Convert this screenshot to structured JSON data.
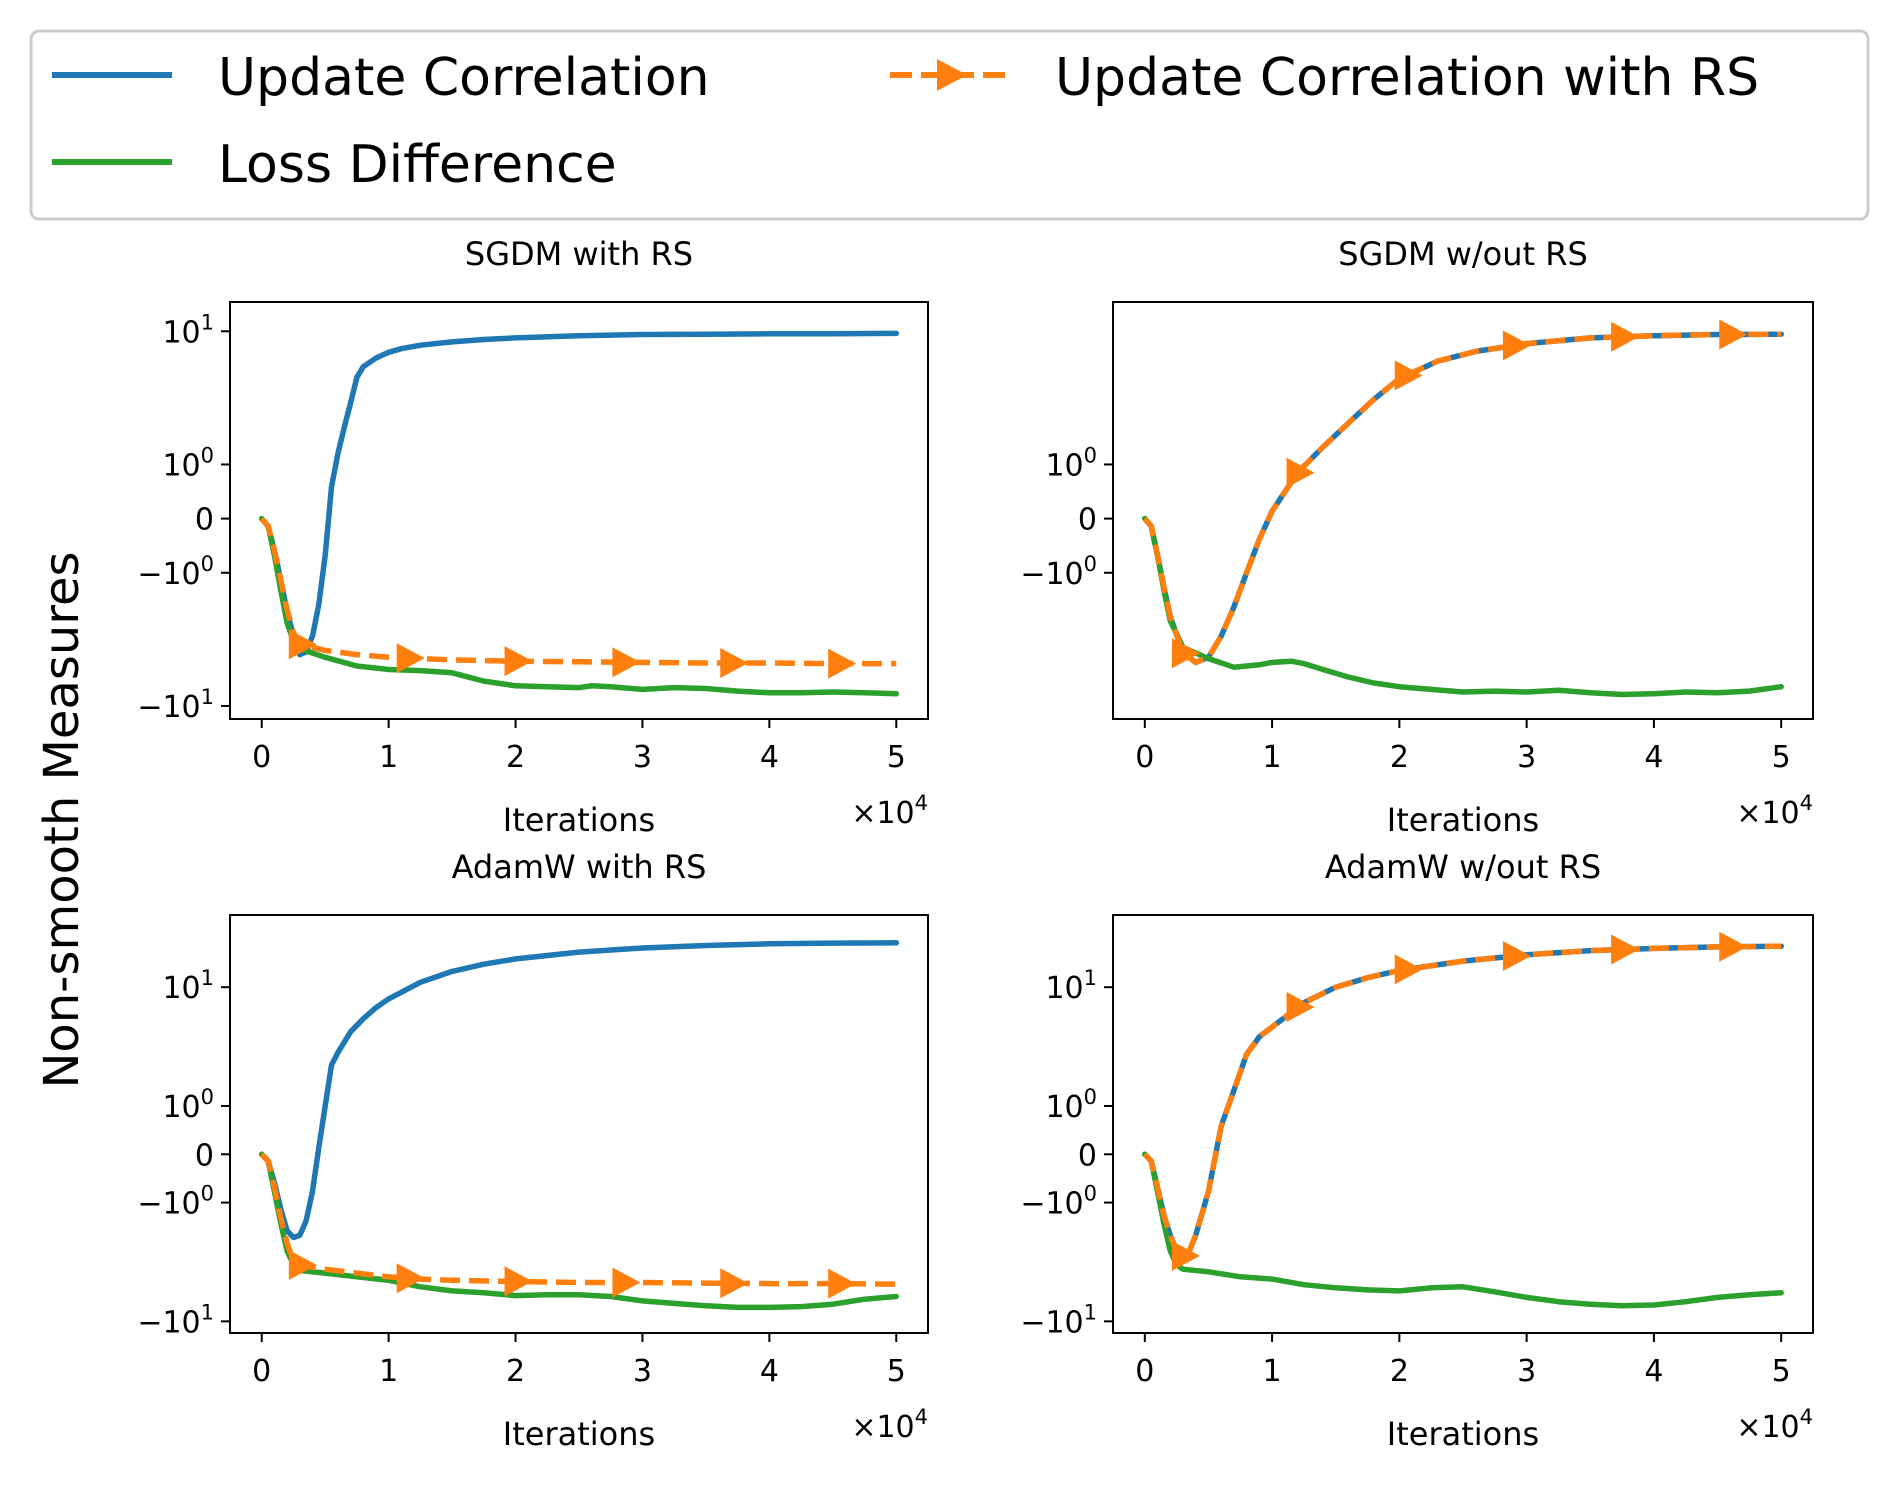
{
  "figure": {
    "ylabel": "Non-smooth Measures"
  },
  "legend": {
    "entries": [
      {
        "label": "Update Correlation",
        "color": "#1f77b4",
        "style": "solid"
      },
      {
        "label": "Update Correlation with RS",
        "color": "#ff7f0e",
        "style": "dashed-triangle"
      },
      {
        "label": "Loss Difference",
        "color": "#2ca02c",
        "style": "solid"
      }
    ]
  },
  "chart_data": [
    {
      "type": "line",
      "title": "SGDM with RS",
      "xlabel": "Iterations",
      "x_multiplier": "×10",
      "x_multiplier_exp": "4",
      "xlim": [
        -0.25,
        5.25
      ],
      "ylim": [
        -12,
        15
      ],
      "x_ticks": [
        0,
        1,
        2,
        3,
        4,
        5
      ],
      "y_ticks": [
        {
          "value": 10,
          "label": "10",
          "sup": "1"
        },
        {
          "value": 1,
          "label": "10",
          "sup": "0"
        },
        {
          "value": 0,
          "label": "0",
          "sup": ""
        },
        {
          "value": -1,
          "label": "−10",
          "sup": "0"
        },
        {
          "value": -10,
          "label": "−10",
          "sup": "1"
        }
      ],
      "series": [
        {
          "name": "Update Correlation",
          "color": "#1f77b4",
          "x": [
            0,
            0.05,
            0.1,
            0.15,
            0.2,
            0.25,
            0.3,
            0.35,
            0.4,
            0.45,
            0.5,
            0.55,
            0.6,
            0.65,
            0.7,
            0.75,
            0.8,
            0.9,
            1.0,
            1.1,
            1.25,
            1.5,
            1.75,
            2.0,
            2.5,
            3.0,
            3.5,
            4.0,
            4.5,
            5.0
          ],
          "y": [
            0,
            -0.1,
            -0.5,
            -1.2,
            -2.3,
            -3.5,
            -4.7,
            -4.5,
            -3.5,
            -2.0,
            -0.6,
            0.5,
            1.3,
            2.2,
            3.4,
            5.1,
            6.0,
            6.8,
            7.4,
            7.8,
            8.2,
            8.6,
            8.9,
            9.1,
            9.4,
            9.55,
            9.6,
            9.65,
            9.67,
            9.7
          ]
        },
        {
          "name": "Update Correlation with RS",
          "color": "#ff7f0e",
          "x": [
            0,
            0.05,
            0.1,
            0.15,
            0.2,
            0.25,
            0.3,
            0.5,
            0.75,
            1.0,
            1.25,
            1.5,
            2.0,
            2.5,
            3.0,
            3.5,
            4.0,
            4.5,
            5.0
          ],
          "y": [
            0,
            -0.1,
            -0.5,
            -1.2,
            -2.2,
            -3.3,
            -4.0,
            -4.4,
            -4.7,
            -4.9,
            -5.0,
            -5.1,
            -5.2,
            -5.25,
            -5.3,
            -5.35,
            -5.35,
            -5.4,
            -5.4
          ],
          "markers_x": [
            0.3,
            1.15,
            2.0,
            2.85,
            3.7,
            4.55
          ]
        },
        {
          "name": "Loss Difference",
          "color": "#2ca02c",
          "x": [
            0,
            0.05,
            0.1,
            0.15,
            0.2,
            0.25,
            0.3,
            0.5,
            0.75,
            1.0,
            1.25,
            1.5,
            1.75,
            2.0,
            2.25,
            2.5,
            2.6,
            2.75,
            3.0,
            3.25,
            3.5,
            3.75,
            4.0,
            4.25,
            4.5,
            4.75,
            5.0
          ],
          "y": [
            0,
            -0.1,
            -0.6,
            -1.5,
            -2.8,
            -3.8,
            -4.3,
            -4.9,
            -5.6,
            -5.9,
            -6.0,
            -6.2,
            -7.0,
            -7.5,
            -7.6,
            -7.7,
            -7.5,
            -7.6,
            -7.9,
            -7.7,
            -7.8,
            -8.1,
            -8.3,
            -8.3,
            -8.2,
            -8.3,
            -8.4
          ]
        }
      ]
    },
    {
      "type": "line",
      "title": "SGDM w/out RS",
      "xlabel": "Iterations",
      "x_multiplier": "×10",
      "x_multiplier_exp": "4",
      "xlim": [
        -0.25,
        5.25
      ],
      "ylim": [
        -12,
        15
      ],
      "x_ticks": [
        0,
        1,
        2,
        3,
        4,
        5
      ],
      "y_ticks": [
        {
          "value": 1,
          "label": "10",
          "sup": "0"
        },
        {
          "value": 0,
          "label": "0",
          "sup": ""
        },
        {
          "value": -1,
          "label": "−10",
          "sup": "0"
        }
      ],
      "series": [
        {
          "name": "Update Correlation",
          "color": "#1f77b4",
          "x": [
            0,
            0.05,
            0.1,
            0.15,
            0.2,
            0.3,
            0.4,
            0.5,
            0.6,
            0.7,
            0.8,
            0.9,
            1.0,
            1.2,
            1.4,
            1.6,
            1.8,
            2.0,
            2.3,
            2.6,
            3.0,
            3.5,
            4.0,
            4.5,
            5.0
          ],
          "y": [
            0,
            -0.1,
            -0.6,
            -1.4,
            -2.5,
            -4.6,
            -5.3,
            -4.9,
            -3.5,
            -2.1,
            -1.0,
            -0.3,
            0.1,
            0.8,
            1.5,
            2.4,
            3.6,
            5.0,
            6.5,
            7.5,
            8.4,
            9.1,
            9.4,
            9.55,
            9.6
          ]
        },
        {
          "name": "Update Correlation with RS",
          "color": "#ff7f0e",
          "x": [
            0,
            0.05,
            0.1,
            0.15,
            0.2,
            0.3,
            0.4,
            0.5,
            0.6,
            0.7,
            0.8,
            0.9,
            1.0,
            1.2,
            1.4,
            1.6,
            1.8,
            2.0,
            2.3,
            2.6,
            3.0,
            3.5,
            4.0,
            4.5,
            5.0
          ],
          "y": [
            0,
            -0.1,
            -0.6,
            -1.4,
            -2.5,
            -4.6,
            -5.3,
            -4.9,
            -3.5,
            -2.1,
            -1.0,
            -0.3,
            0.1,
            0.8,
            1.5,
            2.4,
            3.6,
            5.0,
            6.5,
            7.5,
            8.4,
            9.1,
            9.4,
            9.55,
            9.6
          ],
          "markers_x": [
            0.3,
            1.2,
            2.05,
            2.9,
            3.75,
            4.6
          ]
        },
        {
          "name": "Loss Difference",
          "color": "#2ca02c",
          "x": [
            0,
            0.05,
            0.1,
            0.15,
            0.2,
            0.3,
            0.5,
            0.7,
            0.9,
            1.0,
            1.15,
            1.25,
            1.4,
            1.6,
            1.8,
            2.0,
            2.25,
            2.5,
            2.75,
            3.0,
            3.25,
            3.5,
            3.75,
            4.0,
            4.25,
            4.5,
            4.75,
            5.0
          ],
          "y": [
            0,
            -0.1,
            -0.6,
            -1.5,
            -2.7,
            -4.2,
            -5.0,
            -5.7,
            -5.5,
            -5.3,
            -5.2,
            -5.4,
            -5.9,
            -6.6,
            -7.2,
            -7.6,
            -7.9,
            -8.2,
            -8.1,
            -8.2,
            -8.0,
            -8.3,
            -8.5,
            -8.4,
            -8.2,
            -8.3,
            -8.1,
            -7.6
          ]
        }
      ]
    },
    {
      "type": "line",
      "title": "AdamW with RS",
      "xlabel": "Iterations",
      "x_multiplier": "×10",
      "x_multiplier_exp": "4",
      "xlim": [
        -0.25,
        5.25
      ],
      "ylim": [
        -12,
        30
      ],
      "x_ticks": [
        0,
        1,
        2,
        3,
        4,
        5
      ],
      "y_ticks": [
        {
          "value": 10,
          "label": "10",
          "sup": "1"
        },
        {
          "value": 1,
          "label": "10",
          "sup": "0"
        },
        {
          "value": 0,
          "label": "0",
          "sup": ""
        },
        {
          "value": -1,
          "label": "−10",
          "sup": "0"
        },
        {
          "value": -10,
          "label": "−10",
          "sup": "1"
        }
      ],
      "series": [
        {
          "name": "Update Correlation",
          "color": "#1f77b4",
          "x": [
            0,
            0.05,
            0.1,
            0.15,
            0.2,
            0.25,
            0.3,
            0.35,
            0.4,
            0.45,
            0.5,
            0.55,
            0.6,
            0.7,
            0.8,
            0.9,
            1.0,
            1.25,
            1.5,
            1.75,
            2.0,
            2.5,
            3.0,
            3.5,
            4.0,
            4.5,
            5.0
          ],
          "y": [
            0,
            -0.1,
            -0.5,
            -1.2,
            -2.0,
            -2.3,
            -2.2,
            -1.6,
            -0.7,
            0.1,
            1.0,
            2.6,
            3.3,
            4.8,
            6.0,
            7.2,
            8.3,
            10.8,
            12.8,
            14.3,
            15.5,
            17.2,
            18.3,
            19.0,
            19.5,
            19.7,
            19.8
          ]
        },
        {
          "name": "Update Correlation with RS",
          "color": "#ff7f0e",
          "x": [
            0,
            0.05,
            0.1,
            0.15,
            0.2,
            0.25,
            0.3,
            0.5,
            0.75,
            1.0,
            1.25,
            1.5,
            2.0,
            2.5,
            3.0,
            3.5,
            4.0,
            4.5,
            5.0
          ],
          "y": [
            0,
            -0.1,
            -0.6,
            -1.5,
            -2.6,
            -3.6,
            -3.9,
            -4.2,
            -4.5,
            -4.8,
            -5.0,
            -5.1,
            -5.2,
            -5.3,
            -5.3,
            -5.35,
            -5.4,
            -5.4,
            -5.45
          ],
          "markers_x": [
            0.3,
            1.15,
            2.0,
            2.85,
            3.7,
            4.55
          ]
        },
        {
          "name": "Loss Difference",
          "color": "#2ca02c",
          "x": [
            0,
            0.05,
            0.1,
            0.15,
            0.2,
            0.25,
            0.3,
            0.5,
            0.75,
            1.0,
            1.25,
            1.5,
            1.75,
            2.0,
            2.25,
            2.5,
            2.75,
            3.0,
            3.25,
            3.5,
            3.75,
            4.0,
            4.25,
            4.5,
            4.75,
            5.0
          ],
          "y": [
            0,
            -0.1,
            -0.7,
            -1.7,
            -3.0,
            -3.9,
            -4.3,
            -4.5,
            -4.8,
            -5.1,
            -5.7,
            -6.1,
            -6.3,
            -6.6,
            -6.5,
            -6.5,
            -6.7,
            -7.2,
            -7.5,
            -7.8,
            -8.0,
            -8.0,
            -7.9,
            -7.6,
            -7.0,
            -6.7
          ]
        }
      ]
    },
    {
      "type": "line",
      "title": "AdamW w/out RS",
      "xlabel": "Iterations",
      "x_multiplier": "×10",
      "x_multiplier_exp": "4",
      "xlim": [
        -0.25,
        5.25
      ],
      "ylim": [
        -12,
        30
      ],
      "x_ticks": [
        0,
        1,
        2,
        3,
        4,
        5
      ],
      "y_ticks": [
        {
          "value": 10,
          "label": "10",
          "sup": "1"
        },
        {
          "value": 1,
          "label": "10",
          "sup": "0"
        },
        {
          "value": 0,
          "label": "0",
          "sup": ""
        },
        {
          "value": -1,
          "label": "−10",
          "sup": "0"
        },
        {
          "value": -10,
          "label": "−10",
          "sup": "1"
        }
      ],
      "series": [
        {
          "name": "Update Correlation",
          "color": "#1f77b4",
          "x": [
            0,
            0.05,
            0.1,
            0.15,
            0.2,
            0.25,
            0.3,
            0.35,
            0.4,
            0.5,
            0.6,
            0.7,
            0.8,
            0.9,
            1.0,
            1.25,
            1.5,
            1.75,
            2.0,
            2.5,
            3.0,
            3.5,
            4.0,
            4.5,
            5.0
          ],
          "y": [
            0,
            -0.1,
            -0.6,
            -1.4,
            -2.2,
            -3.0,
            -3.3,
            -3.0,
            -2.2,
            -0.7,
            0.5,
            1.5,
            3.2,
            4.4,
            5.2,
            7.8,
            10.0,
            11.6,
            13.0,
            15.0,
            16.5,
            17.6,
            18.2,
            18.6,
            18.8
          ]
        },
        {
          "name": "Update Correlation with RS",
          "color": "#ff7f0e",
          "x": [
            0,
            0.05,
            0.1,
            0.15,
            0.2,
            0.25,
            0.3,
            0.35,
            0.4,
            0.5,
            0.6,
            0.7,
            0.8,
            0.9,
            1.0,
            1.25,
            1.5,
            1.75,
            2.0,
            2.5,
            3.0,
            3.5,
            4.0,
            4.5,
            5.0
          ],
          "y": [
            0,
            -0.1,
            -0.6,
            -1.4,
            -2.2,
            -3.0,
            -3.3,
            -3.0,
            -2.2,
            -0.7,
            0.5,
            1.5,
            3.2,
            4.4,
            5.2,
            7.8,
            10.0,
            11.6,
            13.0,
            15.0,
            16.5,
            17.6,
            18.2,
            18.6,
            18.8
          ],
          "markers_x": [
            0.3,
            1.2,
            2.05,
            2.9,
            3.75,
            4.6
          ]
        },
        {
          "name": "Loss Difference",
          "color": "#2ca02c",
          "x": [
            0,
            0.05,
            0.1,
            0.15,
            0.2,
            0.25,
            0.3,
            0.5,
            0.75,
            1.0,
            1.25,
            1.5,
            1.75,
            2.0,
            2.25,
            2.5,
            2.75,
            3.0,
            3.25,
            3.5,
            3.75,
            4.0,
            4.25,
            4.5,
            4.75,
            5.0
          ],
          "y": [
            0,
            -0.1,
            -0.7,
            -1.7,
            -3.0,
            -3.9,
            -4.2,
            -4.4,
            -4.8,
            -5.0,
            -5.5,
            -5.8,
            -6.0,
            -6.1,
            -5.8,
            -5.7,
            -6.2,
            -6.8,
            -7.3,
            -7.6,
            -7.8,
            -7.7,
            -7.3,
            -6.8,
            -6.5,
            -6.3
          ]
        }
      ]
    }
  ]
}
